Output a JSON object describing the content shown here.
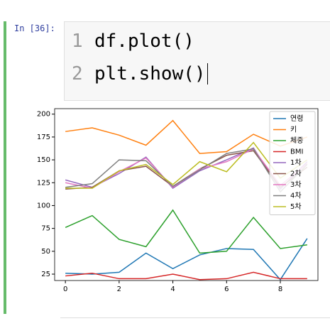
{
  "cell": {
    "prompt": "In [36]:",
    "code": [
      {
        "number": "1",
        "text": "df.plot()"
      },
      {
        "number": "2",
        "text": "plt.show()"
      }
    ]
  },
  "chart_data": {
    "type": "line",
    "x": [
      0,
      1,
      2,
      3,
      4,
      5,
      6,
      7,
      8,
      9
    ],
    "xlim": [
      -0.4,
      9.4
    ],
    "xticks": [
      0,
      2,
      4,
      6,
      8
    ],
    "ylim": [
      18,
      206
    ],
    "yticks": [
      25,
      50,
      75,
      100,
      125,
      150,
      175,
      200
    ],
    "legend": "upper right",
    "series": [
      {
        "name": "연령",
        "color": "#1f77b4",
        "values": [
          26,
          25,
          27,
          48,
          31,
          46,
          53,
          52,
          19,
          64
        ]
      },
      {
        "name": "키",
        "color": "#ff7f0e",
        "values": [
          181,
          185,
          177,
          166,
          193,
          157,
          159,
          178,
          165,
          175
        ]
      },
      {
        "name": "체중",
        "color": "#2ca02c",
        "values": [
          76,
          89,
          63,
          55,
          95,
          48,
          50,
          87,
          53,
          57
        ]
      },
      {
        "name": "BMI",
        "color": "#d62728",
        "values": [
          23,
          26,
          20,
          20,
          25,
          19,
          20,
          27,
          20,
          20
        ]
      },
      {
        "name": "1차",
        "color": "#9467bd",
        "values": [
          128,
          120,
          135,
          153,
          119,
          138,
          150,
          163,
          118,
          148
        ]
      },
      {
        "name": "2차",
        "color": "#8c564b",
        "values": [
          118,
          120,
          138,
          143,
          121,
          140,
          155,
          160,
          120,
          142
        ]
      },
      {
        "name": "3차",
        "color": "#e377c2",
        "values": [
          125,
          119,
          137,
          152,
          120,
          140,
          148,
          162,
          122,
          146
        ]
      },
      {
        "name": "4차",
        "color": "#7f7f7f",
        "values": [
          120,
          124,
          150,
          149,
          121,
          139,
          157,
          162,
          115,
          145
        ]
      },
      {
        "name": "5차",
        "color": "#bcbd22",
        "values": [
          119,
          119,
          138,
          145,
          123,
          148,
          137,
          169,
          130,
          150
        ]
      }
    ]
  }
}
